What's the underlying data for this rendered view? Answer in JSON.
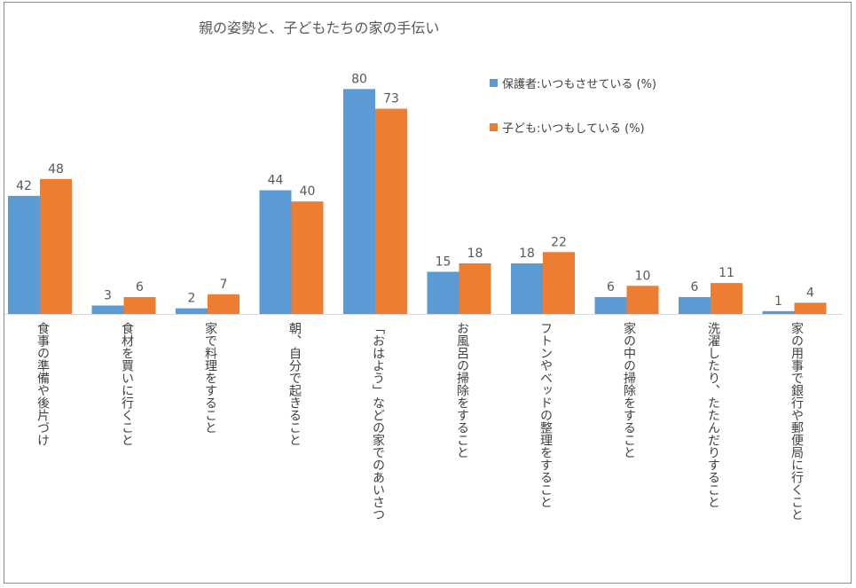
{
  "title": "親の姿勢と、子どもたちの家の手伝い",
  "colors": {
    "series0": "#5b9bd5",
    "series1": "#ed7d31",
    "axis": "#d9d9d9",
    "text": "#595959"
  },
  "chart_data": {
    "type": "bar",
    "title": "親の姿勢と、子どもたちの家の手伝い",
    "categories": [
      "食事の準備や後片づけ",
      "食材を買いに行くこと",
      "家で料理をすること",
      "朝、自分で起きること",
      "「おはよう」などの家でのあいさつ",
      "お風呂の掃除をすること",
      "フトンやベッドの整理をすること",
      "家の中の掃除をすること",
      "洗濯したり、たたんだりすること",
      "家の用事で銀行や郵便局に行くこと"
    ],
    "series": [
      {
        "name": "保護者:いつもさせている (%)",
        "values": [
          42,
          3,
          2,
          44,
          80,
          15,
          18,
          6,
          6,
          1
        ]
      },
      {
        "name": "子ども:いつもしている (%)",
        "values": [
          48,
          6,
          7,
          40,
          73,
          18,
          22,
          10,
          11,
          4
        ]
      }
    ],
    "ylim": [
      0,
      80
    ],
    "grid": false,
    "legend_position": "top-right",
    "xlabel": "",
    "ylabel": ""
  }
}
